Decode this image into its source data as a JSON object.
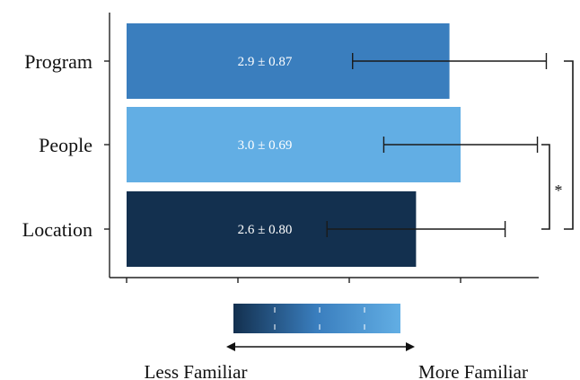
{
  "chart_data": {
    "type": "bar",
    "orientation": "horizontal",
    "categories": [
      "Program",
      "People",
      "Location"
    ],
    "values": [
      2.9,
      3.0,
      2.6
    ],
    "errors": [
      0.87,
      0.69,
      0.8
    ],
    "value_labels": [
      "2.9 ± 0.87",
      "3.0 ± 0.69",
      "2.6 ± 0.80"
    ],
    "bar_colors": [
      "#3a7ebe",
      "#62aee4",
      "#13304f"
    ],
    "significance": [
      {
        "pair": [
          "People",
          "Location"
        ],
        "label": "*"
      },
      {
        "pair": [
          "Program",
          "Location"
        ],
        "label": ""
      }
    ],
    "grid": false,
    "legend": {
      "type": "gradient",
      "colors": [
        "#13304f",
        "#3a7ebe",
        "#62aee4"
      ],
      "low_label": "Less Familiar",
      "high_label": "More Familiar"
    }
  }
}
